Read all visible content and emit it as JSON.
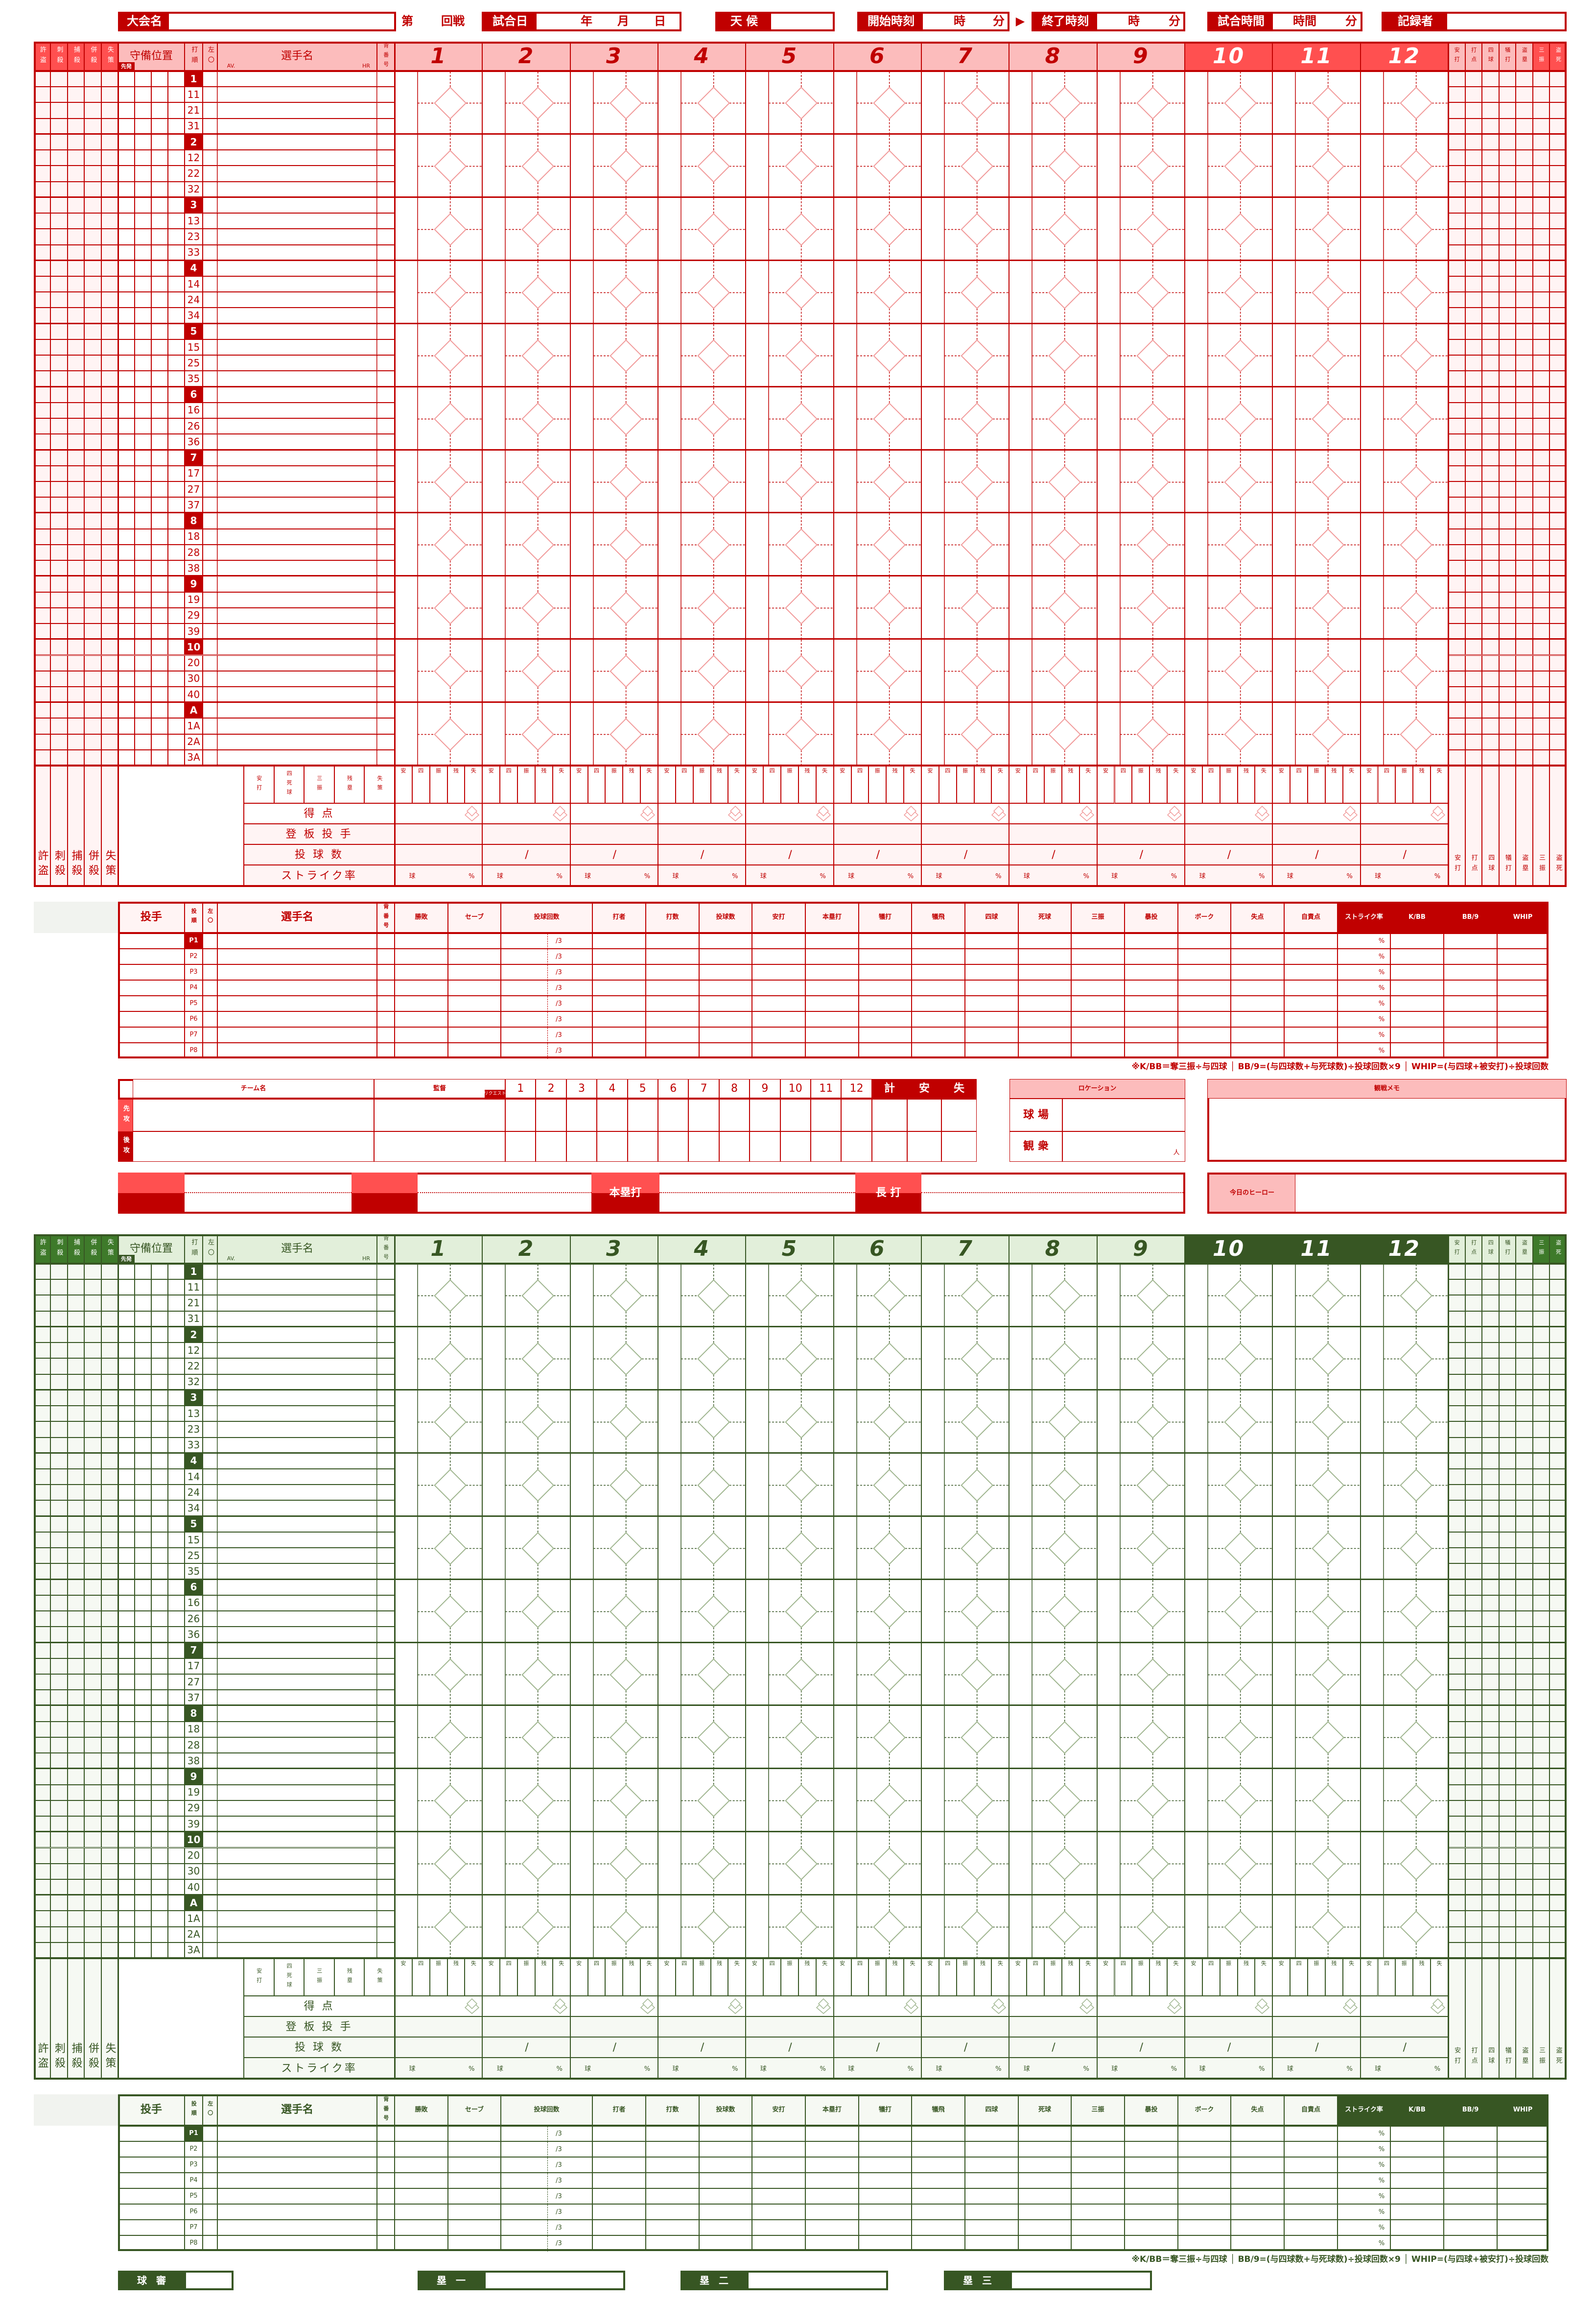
{
  "header": {
    "tournament_label": "大会名",
    "round_prefix": "第",
    "round_suffix": "回戦",
    "date_label": "試合日",
    "date_units": [
      "年",
      "月",
      "日"
    ],
    "weather_label": "天 候",
    "start_label": "開始時刻",
    "end_label": "終了時刻",
    "time_units": [
      "時",
      "分"
    ],
    "arrow": "▶",
    "duration_label": "試合時間",
    "duration_units": [
      "時間",
      "分"
    ],
    "recorder_label": "記録者"
  },
  "batting": {
    "fielding_headers": [
      "許盗",
      "刺殺",
      "捕殺",
      "併殺",
      "失策"
    ],
    "position_label": "守備位置",
    "starter_badge": "先発",
    "order_label": "打順",
    "lr_label": "左〇",
    "name_label": "選手名",
    "av_label": "AV.",
    "hr_label": "HR",
    "number_label": "背番号",
    "innings": [
      "1",
      "2",
      "3",
      "4",
      "5",
      "6",
      "7",
      "8",
      "9",
      "10",
      "11",
      "12"
    ],
    "stat_headers": [
      "安打",
      "打点",
      "四球",
      "犠打",
      "盗塁",
      "三振",
      "盗死"
    ],
    "order_rows": [
      [
        "1",
        "11",
        "21",
        "31"
      ],
      [
        "2",
        "12",
        "22",
        "32"
      ],
      [
        "3",
        "13",
        "23",
        "33"
      ],
      [
        "4",
        "14",
        "24",
        "34"
      ],
      [
        "5",
        "15",
        "25",
        "35"
      ],
      [
        "6",
        "16",
        "26",
        "36"
      ],
      [
        "7",
        "17",
        "27",
        "37"
      ],
      [
        "8",
        "18",
        "28",
        "38"
      ],
      [
        "9",
        "19",
        "29",
        "39"
      ],
      [
        "10",
        "20",
        "30",
        "40"
      ],
      [
        "A",
        "1A",
        "2A",
        "3A"
      ]
    ]
  },
  "summary": {
    "first_col_headers": [
      "安打",
      "四死球",
      "三振",
      "残塁",
      "失策"
    ],
    "inning_stat_headers": [
      "安",
      "四",
      "振",
      "残",
      "失"
    ],
    "rows": [
      "得 点",
      "登 板 投 手",
      "投 球 数",
      "ストライク率"
    ],
    "pitch_sep": "/",
    "strike_units": [
      "球",
      "%"
    ]
  },
  "pitching": {
    "headers": [
      "投手",
      "投順",
      "左〇",
      "選手名",
      "背番号",
      "勝敗",
      "セーブ",
      "投球回数",
      "打者",
      "打数",
      "投球数",
      "安打",
      "本塁打",
      "犠打",
      "犠飛",
      "四球",
      "死球",
      "三振",
      "暴投",
      "ボーク",
      "失点",
      "自責点",
      "ストライク率",
      "K/BB",
      "BB/9",
      "WHIP"
    ],
    "rows": [
      "P1",
      "P2",
      "P3",
      "P4",
      "P5",
      "P6",
      "P7",
      "P8"
    ],
    "innings_suffix": "/3",
    "percent": "%",
    "note": "※K/BB＝奪三振÷与四球 │ BB/9=(与四球数+与死球数)÷投球回数×9 │ WHIP=(与四球+被安打)÷投球回数"
  },
  "scoreboard": {
    "team_label": "チーム名",
    "manager_label": "監督",
    "request_label": "リクエスト",
    "innings": [
      "1",
      "2",
      "3",
      "4",
      "5",
      "6",
      "7",
      "8",
      "9",
      "10",
      "11",
      "12"
    ],
    "total_label": "計",
    "hits_label": "安",
    "errors_label": "失",
    "top_label": "先攻",
    "bottom_label": "後攻"
  },
  "location": {
    "title": "ロケーション",
    "stadium_label": "球 場",
    "audience_label": "観 衆",
    "person_unit": "人"
  },
  "memo": {
    "title": "観戦メモ"
  },
  "highlights": {
    "home_run_label": "本塁打",
    "long_hit_label": "長 打",
    "hero_label": "今日のヒーロー"
  },
  "umpires": [
    "球 審",
    "塁 一",
    "塁 二",
    "塁 三"
  ],
  "colors": {
    "red": {
      "dark": "#c00000",
      "header": "#fcbcbc",
      "medium": "#ff5050"
    },
    "green": {
      "dark": "#375623",
      "header": "#e2efda",
      "medium": "#3e7a2a"
    }
  }
}
